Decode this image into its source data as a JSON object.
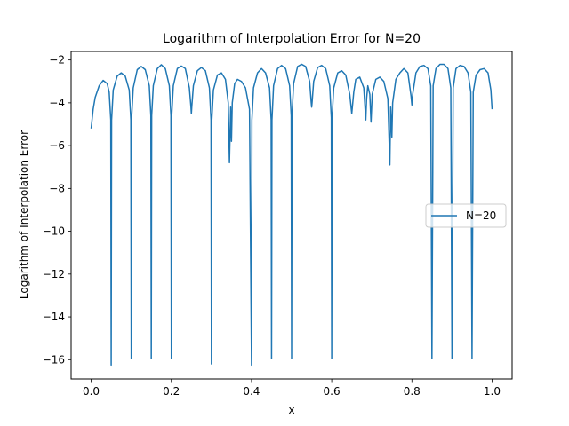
{
  "chart_data": {
    "type": "line",
    "title": "Logarithm of Interpolation Error for N=20",
    "xlabel": "x",
    "ylabel": "Logarithm of Interpolation Error",
    "xlim": [
      -0.05,
      1.05
    ],
    "ylim": [
      -16.9,
      -1.6
    ],
    "xticks": [
      0.0,
      0.2,
      0.4,
      0.6,
      0.8,
      1.0
    ],
    "xtick_labels": [
      "0.0",
      "0.2",
      "0.4",
      "0.6",
      "0.8",
      "1.0"
    ],
    "yticks": [
      -16,
      -14,
      -12,
      -10,
      -8,
      -6,
      -4,
      -2
    ],
    "ytick_labels": [
      "−16",
      "−14",
      "−12",
      "−10",
      "−8",
      "−6",
      "−4",
      "−2"
    ],
    "grid": false,
    "legend": {
      "position": "center-right"
    },
    "series": [
      {
        "name": "N=20",
        "color": "#1f77b4",
        "points": [
          [
            0.0,
            -5.2
          ],
          [
            0.005,
            -4.3
          ],
          [
            0.01,
            -3.75
          ],
          [
            0.02,
            -3.2
          ],
          [
            0.03,
            -2.95
          ],
          [
            0.04,
            -3.1
          ],
          [
            0.045,
            -3.5
          ],
          [
            0.049,
            -4.8
          ],
          [
            0.05,
            -16.25
          ],
          [
            0.051,
            -4.8
          ],
          [
            0.055,
            -3.4
          ],
          [
            0.065,
            -2.75
          ],
          [
            0.075,
            -2.6
          ],
          [
            0.085,
            -2.75
          ],
          [
            0.095,
            -3.4
          ],
          [
            0.099,
            -4.8
          ],
          [
            0.1,
            -15.95
          ],
          [
            0.101,
            -4.7
          ],
          [
            0.105,
            -3.3
          ],
          [
            0.115,
            -2.45
          ],
          [
            0.125,
            -2.3
          ],
          [
            0.135,
            -2.45
          ],
          [
            0.145,
            -3.2
          ],
          [
            0.149,
            -4.6
          ],
          [
            0.15,
            -15.95
          ],
          [
            0.151,
            -4.6
          ],
          [
            0.155,
            -3.2
          ],
          [
            0.165,
            -2.4
          ],
          [
            0.175,
            -2.22
          ],
          [
            0.185,
            -2.4
          ],
          [
            0.195,
            -3.2
          ],
          [
            0.199,
            -4.6
          ],
          [
            0.2,
            -15.95
          ],
          [
            0.201,
            -4.6
          ],
          [
            0.205,
            -3.2
          ],
          [
            0.215,
            -2.4
          ],
          [
            0.225,
            -2.28
          ],
          [
            0.235,
            -2.4
          ],
          [
            0.245,
            -3.3
          ],
          [
            0.249,
            -4.2
          ],
          [
            0.25,
            -4.5
          ],
          [
            0.251,
            -4.2
          ],
          [
            0.255,
            -3.2
          ],
          [
            0.265,
            -2.5
          ],
          [
            0.275,
            -2.35
          ],
          [
            0.285,
            -2.5
          ],
          [
            0.295,
            -3.3
          ],
          [
            0.299,
            -4.8
          ],
          [
            0.3,
            -16.2
          ],
          [
            0.301,
            -4.8
          ],
          [
            0.305,
            -3.4
          ],
          [
            0.315,
            -2.7
          ],
          [
            0.325,
            -2.6
          ],
          [
            0.335,
            -2.9
          ],
          [
            0.342,
            -4.0
          ],
          [
            0.345,
            -6.8
          ],
          [
            0.348,
            -4.2
          ],
          [
            0.35,
            -5.8
          ],
          [
            0.352,
            -4.0
          ],
          [
            0.358,
            -3.1
          ],
          [
            0.365,
            -2.9
          ],
          [
            0.375,
            -3.0
          ],
          [
            0.385,
            -3.3
          ],
          [
            0.395,
            -4.3
          ],
          [
            0.4,
            -16.25
          ],
          [
            0.401,
            -4.8
          ],
          [
            0.405,
            -3.3
          ],
          [
            0.415,
            -2.6
          ],
          [
            0.425,
            -2.4
          ],
          [
            0.435,
            -2.6
          ],
          [
            0.445,
            -3.3
          ],
          [
            0.449,
            -4.8
          ],
          [
            0.45,
            -15.95
          ],
          [
            0.451,
            -4.8
          ],
          [
            0.455,
            -3.2
          ],
          [
            0.465,
            -2.4
          ],
          [
            0.475,
            -2.25
          ],
          [
            0.485,
            -2.4
          ],
          [
            0.495,
            -3.2
          ],
          [
            0.499,
            -4.6
          ],
          [
            0.5,
            -15.95
          ],
          [
            0.501,
            -4.6
          ],
          [
            0.505,
            -3.1
          ],
          [
            0.515,
            -2.3
          ],
          [
            0.525,
            -2.2
          ],
          [
            0.535,
            -2.3
          ],
          [
            0.545,
            -3.0
          ],
          [
            0.549,
            -4.0
          ],
          [
            0.55,
            -4.2
          ],
          [
            0.551,
            -4.0
          ],
          [
            0.555,
            -3.0
          ],
          [
            0.565,
            -2.35
          ],
          [
            0.575,
            -2.25
          ],
          [
            0.585,
            -2.4
          ],
          [
            0.595,
            -3.2
          ],
          [
            0.599,
            -4.7
          ],
          [
            0.6,
            -15.95
          ],
          [
            0.601,
            -4.7
          ],
          [
            0.605,
            -3.3
          ],
          [
            0.615,
            -2.6
          ],
          [
            0.625,
            -2.5
          ],
          [
            0.635,
            -2.7
          ],
          [
            0.645,
            -3.6
          ],
          [
            0.65,
            -4.5
          ],
          [
            0.655,
            -3.5
          ],
          [
            0.66,
            -2.9
          ],
          [
            0.67,
            -2.8
          ],
          [
            0.68,
            -3.3
          ],
          [
            0.685,
            -4.8
          ],
          [
            0.687,
            -3.8
          ],
          [
            0.69,
            -3.2
          ],
          [
            0.695,
            -3.6
          ],
          [
            0.698,
            -4.9
          ],
          [
            0.701,
            -3.6
          ],
          [
            0.71,
            -2.9
          ],
          [
            0.72,
            -2.8
          ],
          [
            0.73,
            -3.0
          ],
          [
            0.74,
            -3.8
          ],
          [
            0.745,
            -6.9
          ],
          [
            0.747,
            -4.2
          ],
          [
            0.75,
            -5.6
          ],
          [
            0.752,
            -4.0
          ],
          [
            0.76,
            -2.9
          ],
          [
            0.77,
            -2.6
          ],
          [
            0.78,
            -2.4
          ],
          [
            0.79,
            -2.6
          ],
          [
            0.798,
            -3.7
          ],
          [
            0.8,
            -4.1
          ],
          [
            0.802,
            -3.6
          ],
          [
            0.81,
            -2.6
          ],
          [
            0.82,
            -2.3
          ],
          [
            0.83,
            -2.25
          ],
          [
            0.84,
            -2.4
          ],
          [
            0.847,
            -3.2
          ],
          [
            0.85,
            -15.95
          ],
          [
            0.853,
            -3.2
          ],
          [
            0.86,
            -2.4
          ],
          [
            0.87,
            -2.2
          ],
          [
            0.88,
            -2.2
          ],
          [
            0.89,
            -2.4
          ],
          [
            0.897,
            -3.3
          ],
          [
            0.9,
            -15.95
          ],
          [
            0.903,
            -3.3
          ],
          [
            0.91,
            -2.4
          ],
          [
            0.92,
            -2.25
          ],
          [
            0.93,
            -2.3
          ],
          [
            0.94,
            -2.6
          ],
          [
            0.947,
            -3.5
          ],
          [
            0.95,
            -15.95
          ],
          [
            0.953,
            -3.5
          ],
          [
            0.96,
            -2.7
          ],
          [
            0.97,
            -2.45
          ],
          [
            0.98,
            -2.4
          ],
          [
            0.99,
            -2.6
          ],
          [
            0.997,
            -3.4
          ],
          [
            1.0,
            -4.3
          ]
        ]
      }
    ]
  }
}
